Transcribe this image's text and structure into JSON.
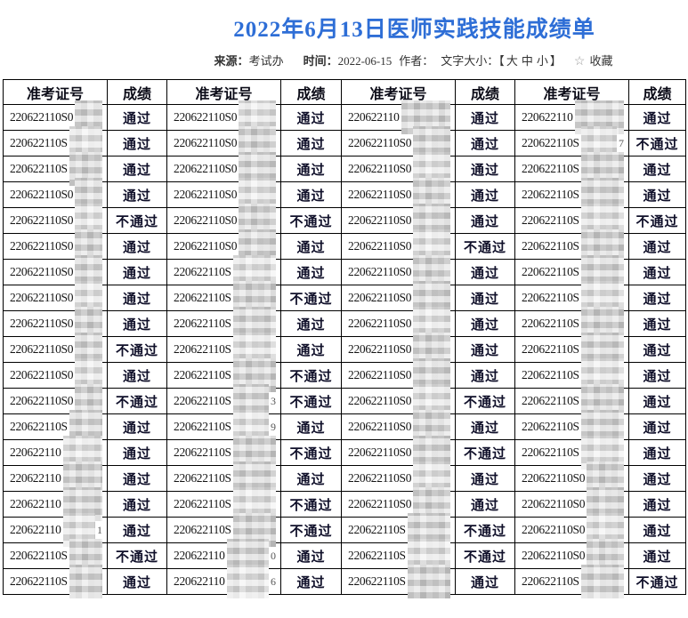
{
  "title": "2022年6月13日医师实践技能成绩单",
  "colors": {
    "title_blue": "#2e6ed6"
  },
  "meta": {
    "source_label": "来源：",
    "source_value": "考试办",
    "time_label": "时间：",
    "time_value": "2022-06-15",
    "author_label": "作者：",
    "fontsize_label": "文字大小：",
    "bracket_open": "【",
    "size_large": "大",
    "size_medium": "中",
    "size_small": "小",
    "bracket_close": "】",
    "favorite_star": "☆",
    "favorite_label": "收藏"
  },
  "table": {
    "header": [
      "准考证号",
      "成绩",
      "准考证号",
      "成绩",
      "准考证号",
      "成绩",
      "准考证号",
      "成绩"
    ],
    "pass_text": "通过",
    "fail_text": "不通过",
    "rows": [
      [
        {
          "id": "220622110S0",
          "tail": "",
          "result": "通过"
        },
        {
          "id": "220622110S0",
          "tail": "",
          "result": "通过"
        },
        {
          "id": "220622110",
          "tail": "",
          "result": "通过"
        },
        {
          "id": "220622110",
          "tail": "",
          "result": "通过"
        }
      ],
      [
        {
          "id": "220622110S",
          "tail": "",
          "result": "通过"
        },
        {
          "id": "220622110S0",
          "tail": "",
          "result": "通过"
        },
        {
          "id": "220622110S0",
          "tail": "",
          "result": "通过"
        },
        {
          "id": "220622110S",
          "tail": "7",
          "result": "不通过"
        }
      ],
      [
        {
          "id": "220622110S",
          "tail": "",
          "result": "通过"
        },
        {
          "id": "220622110S0",
          "tail": "",
          "result": "通过"
        },
        {
          "id": "220622110S0",
          "tail": "",
          "result": "通过"
        },
        {
          "id": "220622110S",
          "tail": "",
          "result": "通过"
        }
      ],
      [
        {
          "id": "220622110S0",
          "tail": "",
          "result": "通过"
        },
        {
          "id": "220622110S0",
          "tail": "",
          "result": "通过"
        },
        {
          "id": "220622110S0",
          "tail": "",
          "result": "通过"
        },
        {
          "id": "220622110S",
          "tail": "",
          "result": "通过"
        }
      ],
      [
        {
          "id": "220622110S0",
          "tail": "",
          "result": "不通过"
        },
        {
          "id": "220622110S0",
          "tail": "",
          "result": "不通过"
        },
        {
          "id": "220622110S0",
          "tail": "",
          "result": "通过"
        },
        {
          "id": "220622110S",
          "tail": "",
          "result": "不通过"
        }
      ],
      [
        {
          "id": "220622110S0",
          "tail": "",
          "result": "通过"
        },
        {
          "id": "220622110S0",
          "tail": "",
          "result": "通过"
        },
        {
          "id": "220622110S0",
          "tail": "",
          "result": "不通过"
        },
        {
          "id": "220622110S",
          "tail": "",
          "result": "通过"
        }
      ],
      [
        {
          "id": "220622110S0",
          "tail": "",
          "result": "通过"
        },
        {
          "id": "220622110S",
          "tail": "",
          "result": "通过"
        },
        {
          "id": "220622110S0",
          "tail": "",
          "result": "通过"
        },
        {
          "id": "220622110S",
          "tail": "",
          "result": "通过"
        }
      ],
      [
        {
          "id": "220622110S0",
          "tail": "",
          "result": "通过"
        },
        {
          "id": "220622110S",
          "tail": "",
          "result": "不通过"
        },
        {
          "id": "220622110S0",
          "tail": "",
          "result": "通过"
        },
        {
          "id": "220622110S",
          "tail": "",
          "result": "通过"
        }
      ],
      [
        {
          "id": "220622110S0",
          "tail": "",
          "result": "通过"
        },
        {
          "id": "220622110S",
          "tail": "",
          "result": "通过"
        },
        {
          "id": "220622110S0",
          "tail": "",
          "result": "通过"
        },
        {
          "id": "220622110S",
          "tail": "",
          "result": "通过"
        }
      ],
      [
        {
          "id": "220622110S0",
          "tail": "",
          "result": "不通过"
        },
        {
          "id": "220622110S",
          "tail": "",
          "result": "通过"
        },
        {
          "id": "220622110S0",
          "tail": "",
          "result": "通过"
        },
        {
          "id": "220622110S",
          "tail": "",
          "result": "通过"
        }
      ],
      [
        {
          "id": "220622110S0",
          "tail": "",
          "result": "通过"
        },
        {
          "id": "220622110S",
          "tail": "",
          "result": "不通过"
        },
        {
          "id": "220622110S0",
          "tail": "",
          "result": "通过"
        },
        {
          "id": "220622110S",
          "tail": "",
          "result": "通过"
        }
      ],
      [
        {
          "id": "220622110S0",
          "tail": "",
          "result": "不通过"
        },
        {
          "id": "220622110S",
          "tail": "3",
          "result": "不通过"
        },
        {
          "id": "220622110S0",
          "tail": "",
          "result": "不通过"
        },
        {
          "id": "220622110S",
          "tail": "",
          "result": "通过"
        }
      ],
      [
        {
          "id": "220622110S",
          "tail": "",
          "result": "通过"
        },
        {
          "id": "220622110S",
          "tail": "9",
          "result": "通过"
        },
        {
          "id": "220622110S0",
          "tail": "",
          "result": "通过"
        },
        {
          "id": "220622110S",
          "tail": "",
          "result": "通过"
        }
      ],
      [
        {
          "id": "220622110",
          "tail": "",
          "result": "通过"
        },
        {
          "id": "220622110S",
          "tail": "",
          "result": "不通过"
        },
        {
          "id": "220622110S0",
          "tail": "",
          "result": "不通过"
        },
        {
          "id": "220622110S",
          "tail": "",
          "result": "通过"
        }
      ],
      [
        {
          "id": "220622110",
          "tail": "",
          "result": "通过"
        },
        {
          "id": "220622110S",
          "tail": "",
          "result": "通过"
        },
        {
          "id": "220622110S0",
          "tail": "",
          "result": "通过"
        },
        {
          "id": "220622110S0",
          "tail": "",
          "result": "通过"
        }
      ],
      [
        {
          "id": "220622110",
          "tail": "",
          "result": "通过"
        },
        {
          "id": "220622110S",
          "tail": "",
          "result": "不通过"
        },
        {
          "id": "220622110S0",
          "tail": "",
          "result": "通过"
        },
        {
          "id": "220622110S0",
          "tail": "",
          "result": "通过"
        }
      ],
      [
        {
          "id": "220622110",
          "tail": "1",
          "result": "通过"
        },
        {
          "id": "220622110S",
          "tail": "",
          "result": "不通过"
        },
        {
          "id": "220622110S",
          "tail": "",
          "result": "不通过"
        },
        {
          "id": "220622110S0",
          "tail": "",
          "result": "通过"
        }
      ],
      [
        {
          "id": "220622110S",
          "tail": "",
          "result": "不通过"
        },
        {
          "id": "220622110",
          "tail": "0",
          "result": "通过"
        },
        {
          "id": "220622110S",
          "tail": "",
          "result": "不通过"
        },
        {
          "id": "220622110S0",
          "tail": "",
          "result": "通过"
        }
      ],
      [
        {
          "id": "220622110S",
          "tail": "",
          "result": "通过"
        },
        {
          "id": "220622110",
          "tail": "6",
          "result": "通过"
        },
        {
          "id": "220622110S",
          "tail": "",
          "result": "通过"
        },
        {
          "id": "220622110S",
          "tail": "",
          "result": "不通过"
        }
      ]
    ]
  }
}
